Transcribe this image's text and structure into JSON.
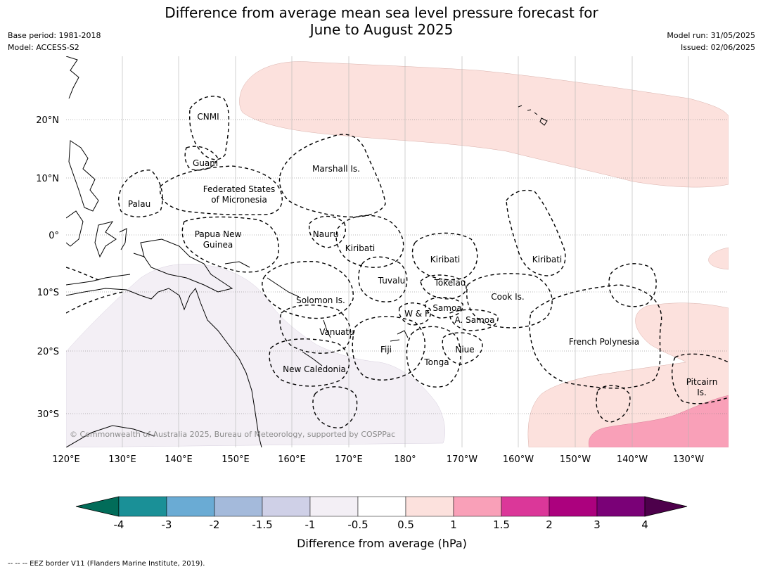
{
  "title_line1": "Difference from average mean sea level pressure forecast for",
  "title_line2": "June to August 2025",
  "meta_left": [
    "Base period: 1981-2018",
    "Model: ACCESS-S2"
  ],
  "meta_right": [
    "Model run: 31/05/2025",
    "Issued: 02/06/2025"
  ],
  "map": {
    "lat_labels": [
      "20°N",
      "10°N",
      "0°",
      "10°S",
      "20°S",
      "30°S"
    ],
    "lon_labels": [
      "120°E",
      "130°E",
      "140°E",
      "150°E",
      "160°E",
      "170°E",
      "180°",
      "170°W",
      "160°W",
      "150°W",
      "140°W",
      "130°W"
    ],
    "region_labels": [
      "CNMI",
      "Guam",
      "Marshall Is.",
      "Palau",
      "Federated States",
      "of Micronesia",
      "Papua New",
      "Guinea",
      "Nauru",
      "Kiribati",
      "Kiribati",
      "Kiribati",
      "Tuvalu",
      "Tokelau",
      "Cook Is.",
      "Solomon Is.",
      "W & F",
      "Samoa",
      "A. Samoa",
      "Vanuatu",
      "Fiji",
      "Niue",
      "French Polynesia",
      "Tonga",
      "New Caledonia",
      "Pitcairn",
      "Is."
    ],
    "copyright": "© Commonwealth of Australia 2025, Bureau of Meteorology, supported by COSPPac",
    "colors": {
      "land_border": "#000000",
      "eez_border": "#000000",
      "grid": "#b4b4b4",
      "anomaly_0_5_to_1": "#fce1dd",
      "anomaly_1_to_1_5": "#f9a0b8",
      "anomaly_neg1_to_neg0_5": "#f3eff5"
    }
  },
  "colorbar": {
    "ticks": [
      "-4",
      "-3",
      "-2",
      "-1.5",
      "-1",
      "-0.5",
      "0.5",
      "1",
      "1.5",
      "2",
      "3",
      "4"
    ],
    "colors": [
      "#1a9097",
      "#6aabd4",
      "#a4badb",
      "#cfd0e7",
      "#f3eff5",
      "#ffffff",
      "#fce1dd",
      "#f9a0b8",
      "#db3799",
      "#ac017e",
      "#7a0177"
    ],
    "extend_low_color": "#016c59",
    "extend_high_color": "#4d004b",
    "title": "Difference from average (hPa)"
  },
  "footnote": "--  --  -- EEZ border V11 (Flanders Marine Institute, 2019)."
}
